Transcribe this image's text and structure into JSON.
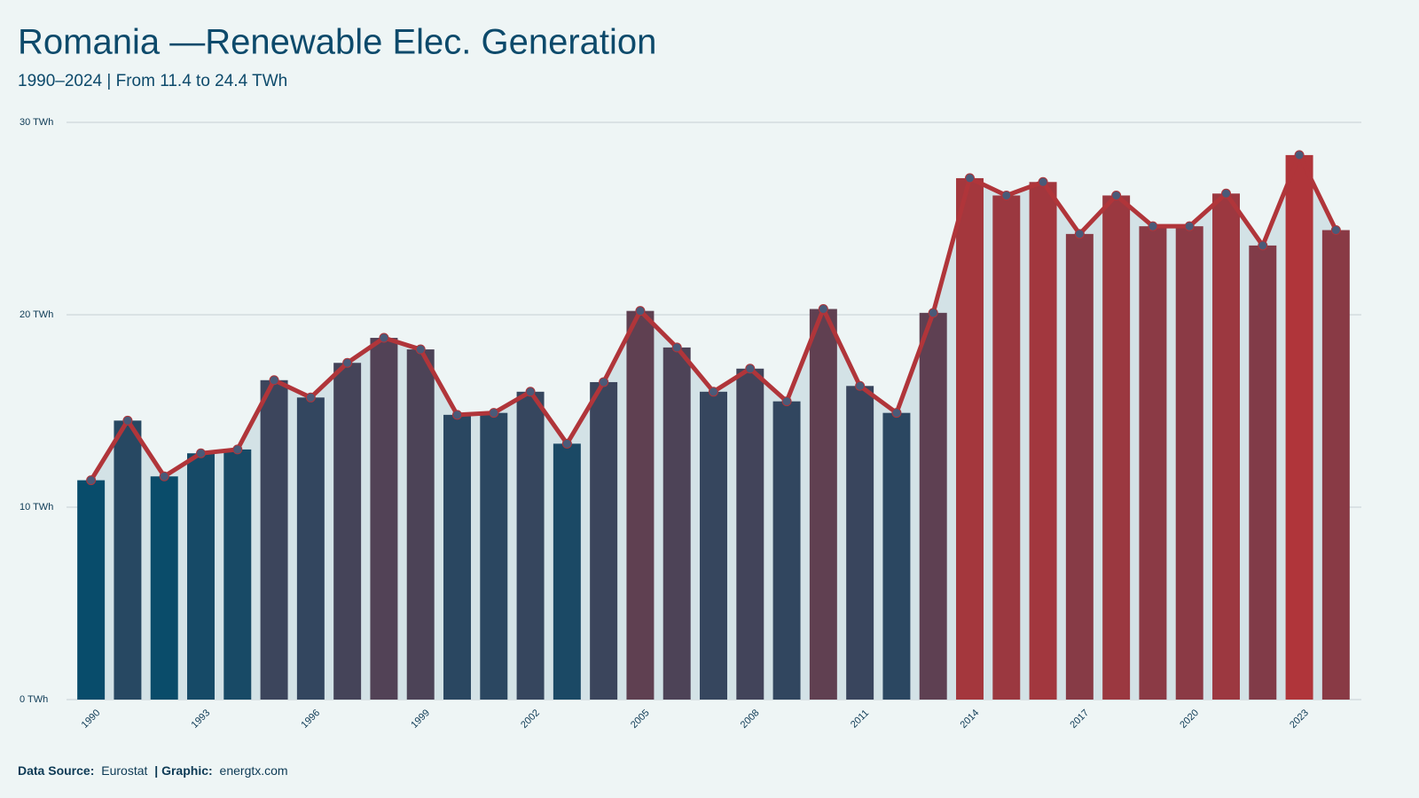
{
  "chart_data": {
    "type": "bar-line",
    "title": "Romania —Renewable Elec. Generation",
    "subtitle": "1990–2024 | From 11.4 to 24.4 TWh",
    "source_label": "Data Source:",
    "source": "Eurostat",
    "graphic_label": "| Graphic:",
    "graphic": "energtx.com",
    "x": [
      1990,
      1991,
      1992,
      1993,
      1994,
      1995,
      1996,
      1997,
      1998,
      1999,
      2000,
      2001,
      2002,
      2003,
      2004,
      2005,
      2006,
      2007,
      2008,
      2009,
      2010,
      2011,
      2012,
      2013,
      2014,
      2015,
      2016,
      2017,
      2018,
      2019,
      2020,
      2021,
      2022,
      2023,
      2024
    ],
    "values": [
      11.4,
      14.5,
      11.6,
      12.8,
      13.0,
      16.6,
      15.7,
      17.5,
      18.8,
      18.2,
      14.8,
      14.9,
      16.0,
      13.3,
      16.5,
      20.2,
      18.3,
      16.0,
      17.2,
      15.5,
      20.3,
      16.3,
      14.9,
      20.1,
      27.1,
      26.2,
      26.9,
      24.2,
      26.2,
      24.6,
      24.6,
      26.3,
      23.6,
      28.3,
      24.4
    ],
    "xlim": [
      1989.5,
      2024.5
    ],
    "xticks": [
      1990,
      1993,
      1996,
      1999,
      2002,
      2005,
      2008,
      2011,
      2014,
      2017,
      2020,
      2023
    ],
    "ylim": [
      0,
      30
    ],
    "yticks": [
      {
        "value": 0,
        "label": "0 TWh"
      },
      {
        "value": 10,
        "label": "10 TWh"
      },
      {
        "value": 20,
        "label": "20 TWh"
      },
      {
        "value": 30,
        "label": "30 TWh"
      }
    ],
    "grid": true,
    "color_low": "#084c6b",
    "color_high": "#b0353a",
    "line_color": "#b0353a",
    "marker_color": "#4a5a78",
    "area_color": "#d3e2e6"
  }
}
